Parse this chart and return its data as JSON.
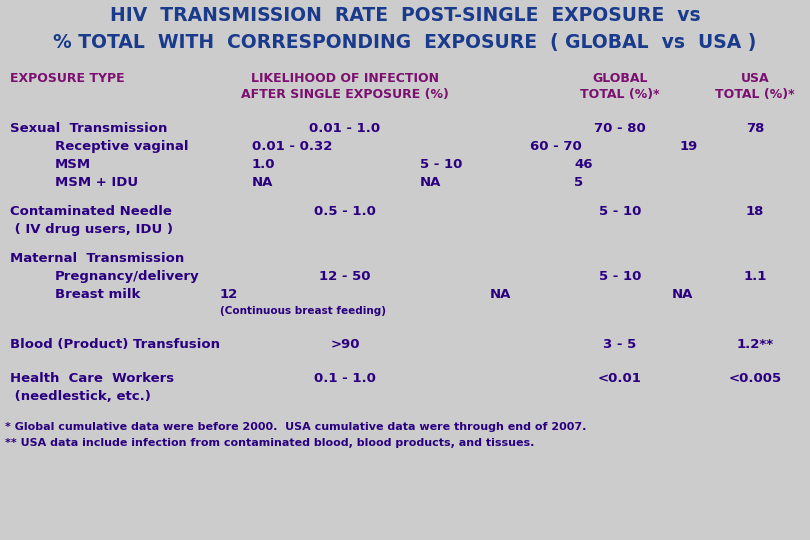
{
  "title_line1": "HIV  TRANSMISSION  RATE  POST-SINGLE  EXPOSURE  vs",
  "title_line2": "% TOTAL  WITH  CORRESPONDING  EXPOSURE  ( GLOBAL  vs  USA )",
  "title_color": "#1a3a8b",
  "header_color": "#7b1070",
  "body_color": "#2b0080",
  "background_color": "#cccccc",
  "footnotes": [
    "* Global cumulative data were before 2000.  USA cumulative data were through end of 2007.",
    "** USA data include infection from contaminated blood, blood products, and tissues."
  ]
}
